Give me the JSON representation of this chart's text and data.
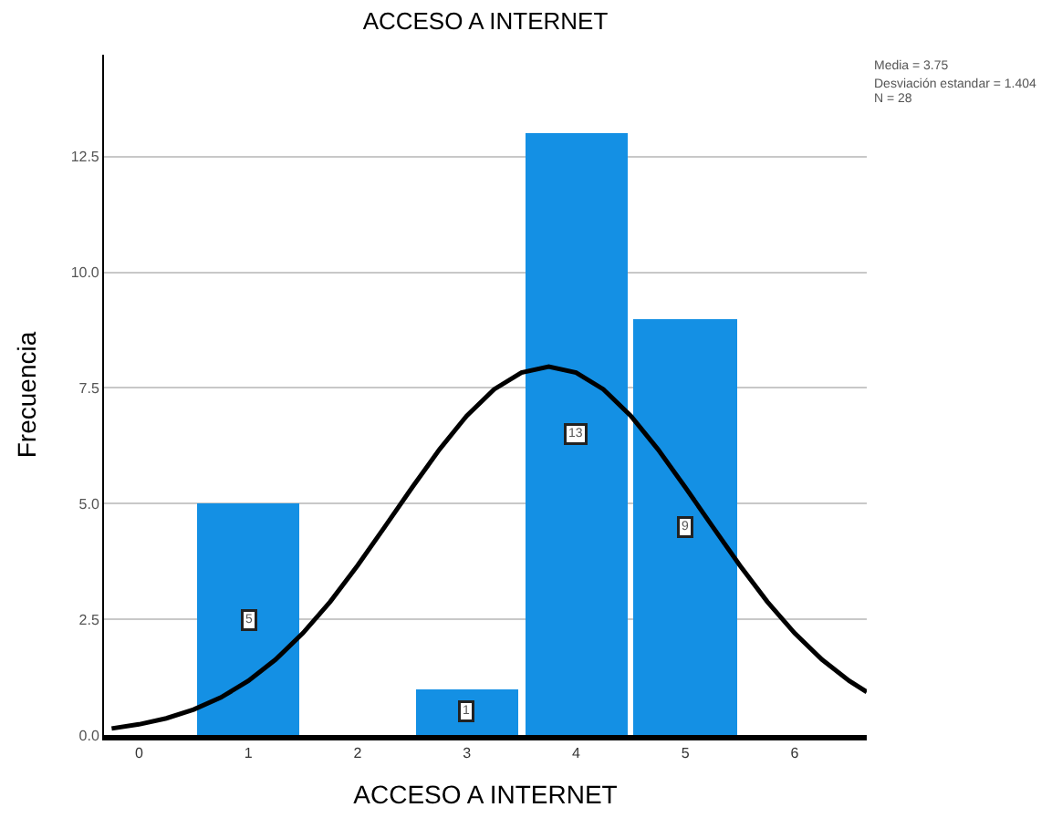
{
  "chart_data": {
    "type": "histogram",
    "title": "ACCESO A INTERNET",
    "xlabel": "ACCESO A INTERNET",
    "ylabel": "Frecuencia",
    "bins": [
      0.5,
      1.5,
      2.5,
      3.5,
      4.5,
      5.5
    ],
    "values": [
      5,
      0,
      1,
      13,
      9
    ],
    "color": "#1490e4",
    "value_labels": [
      "5",
      null,
      "1",
      "13",
      "9"
    ],
    "series": [
      {
        "type": "line",
        "color": "#000000",
        "x": [
          -0.25,
          0,
          0.25,
          0.5,
          0.75,
          1,
          1.25,
          1.5,
          1.75,
          2,
          2.25,
          2.5,
          2.75,
          3,
          3.25,
          3.5,
          3.75,
          4,
          4.25,
          4.5,
          4.75,
          5,
          5.25,
          5.5,
          5.75,
          6,
          6.25,
          6.5,
          6.66
        ],
        "values": [
          0.14,
          0.23,
          0.36,
          0.55,
          0.81,
          1.17,
          1.63,
          2.2,
          2.88,
          3.66,
          4.5,
          5.35,
          6.17,
          6.9,
          7.47,
          7.83,
          7.96,
          7.83,
          7.47,
          6.9,
          6.17,
          5.35,
          4.5,
          3.66,
          2.88,
          2.2,
          1.63,
          1.17,
          0.93
        ]
      }
    ],
    "annotations": [
      "Media = 3.75",
      "Desviación estandar = 1.404",
      "N = 28"
    ],
    "xlim": [
      -0.32,
      6.66
    ],
    "ylim": [
      0,
      14.7
    ],
    "xticks": [
      0,
      1,
      2,
      3,
      4,
      5,
      6
    ],
    "yticks": [
      {
        "value": 0,
        "label": "0.0"
      },
      {
        "value": 2.5,
        "label": "2.5"
      },
      {
        "value": 5,
        "label": "5.0"
      },
      {
        "value": 7.5,
        "label": "7.5"
      },
      {
        "value": 10,
        "label": "10.0"
      },
      {
        "value": 12.5,
        "label": "12.5"
      }
    ],
    "grid": "y"
  }
}
